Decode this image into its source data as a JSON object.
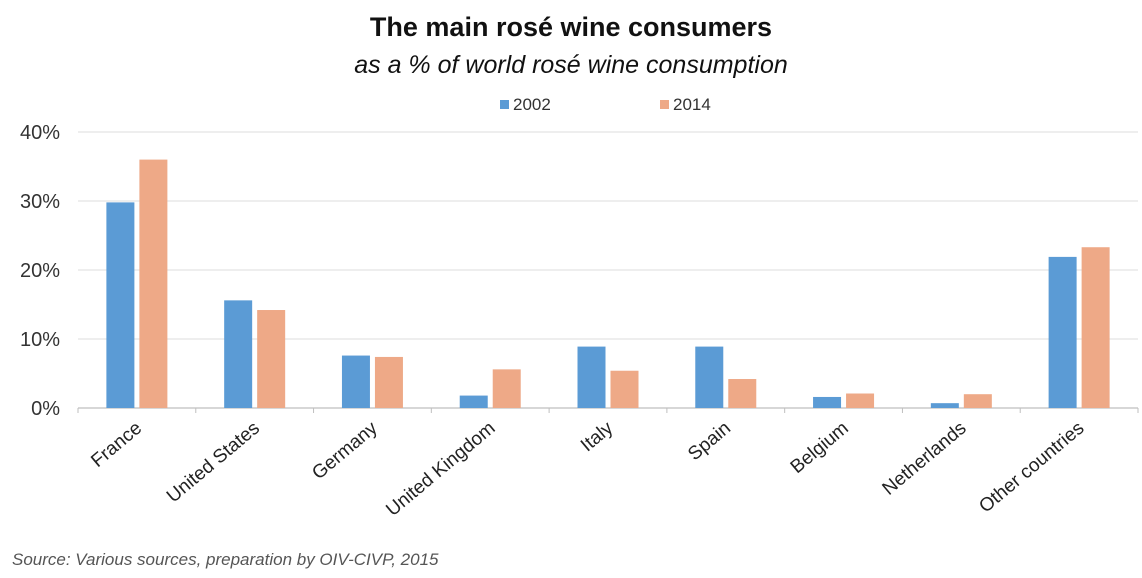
{
  "chart_data": {
    "type": "bar",
    "title": "The main rosé wine consumers",
    "subtitle": "as a % of world rosé wine consumption",
    "source": "Source: Various sources, preparation by OIV-CIVP, 2015",
    "categories": [
      "France",
      "United States",
      "Germany",
      "United Kingdom",
      "Italy",
      "Spain",
      "Belgium",
      "Netherlands",
      "Other countries"
    ],
    "series": [
      {
        "name": "2002",
        "color": "#5b9bd5",
        "values": [
          29.8,
          15.6,
          7.6,
          1.8,
          8.9,
          8.9,
          1.6,
          0.7,
          21.9
        ]
      },
      {
        "name": "2014",
        "color": "#eea987",
        "values": [
          36.0,
          14.2,
          7.4,
          5.6,
          5.4,
          4.2,
          2.1,
          2.0,
          23.3
        ]
      }
    ],
    "yticks": [
      "0%",
      "10%",
      "20%",
      "30%",
      "40%"
    ],
    "ylim": [
      0,
      40
    ],
    "grid": true,
    "legend_position": "top-center"
  }
}
